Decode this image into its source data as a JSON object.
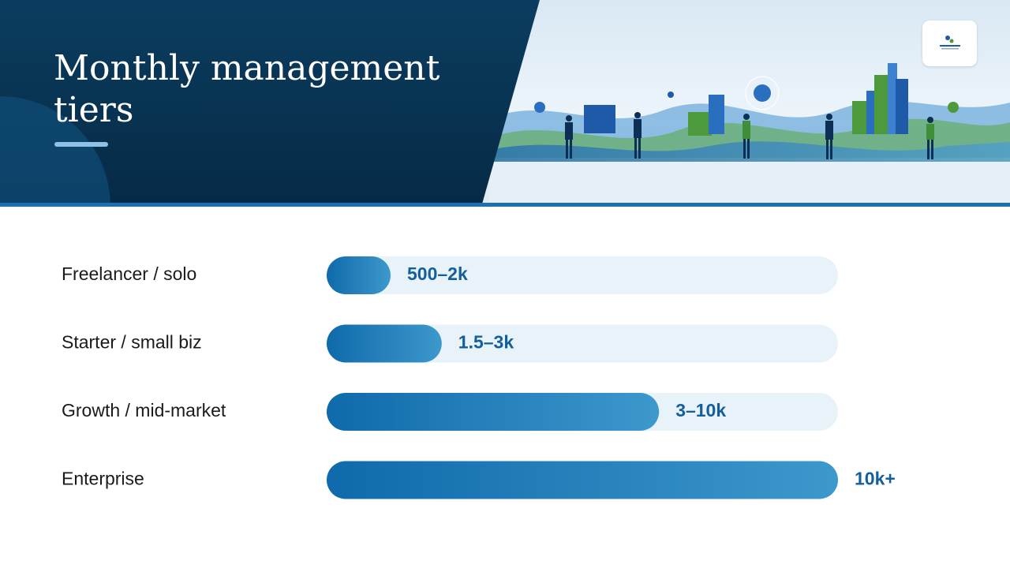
{
  "header": {
    "title": "Monthly management tiers"
  },
  "chart_data": {
    "type": "bar",
    "orientation": "horizontal",
    "title": "Monthly management tiers",
    "categories": [
      "Freelancer / solo",
      "Starter / small biz",
      "Growth / mid-market",
      "Enterprise"
    ],
    "value_labels": [
      "500–2k",
      "1.5–3k",
      "3–10k",
      "10k+"
    ],
    "values": [
      0.125,
      0.225,
      0.65,
      1.0
    ],
    "grid": false,
    "legend": "none"
  },
  "colors": {
    "header_navy": "#0a3a5c",
    "accent_blue": "#1c6fb0",
    "bar_dark": "#0f6aab",
    "bar_light": "#3d98cc",
    "track": "#e8f2f9",
    "value_text": "#145f9a",
    "title_rule": "#8fc1e6"
  }
}
